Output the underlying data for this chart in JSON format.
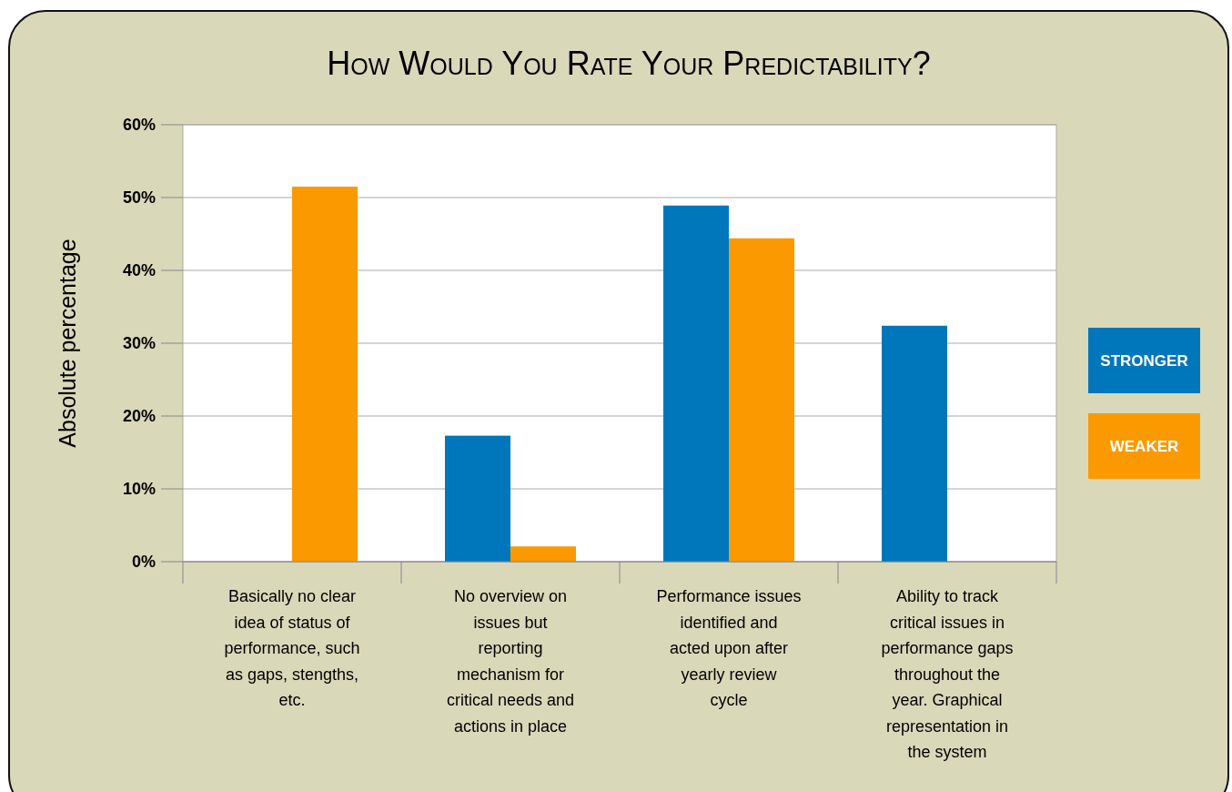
{
  "chart_data": {
    "type": "bar",
    "title": "How Would You Rate Your Predictability?",
    "ylabel": "Absolute percentage",
    "categories": [
      "Basically no clear idea of status of performance, such as gaps, stengths, etc.",
      "No overview on issues but reporting mechanism for critical needs and actions in place",
      "Performance issues identified and acted upon after yearly review cycle",
      "Ability to track critical issues in performance gaps throughout the year. Graphical representation in the system"
    ],
    "series": [
      {
        "name": "STRONGER",
        "color": "#0077bb",
        "values": [
          0,
          17.3,
          48.9,
          32.4
        ]
      },
      {
        "name": "WEAKER",
        "color": "#fa9a00",
        "values": [
          51.5,
          2.1,
          44.4,
          0
        ]
      }
    ],
    "ylim": [
      0,
      60
    ],
    "yticks": [
      {
        "value": 0,
        "label": "0%"
      },
      {
        "value": 10,
        "label": "10%"
      },
      {
        "value": 20,
        "label": "20%"
      },
      {
        "value": 30,
        "label": "30%"
      },
      {
        "value": 40,
        "label": "40%"
      },
      {
        "value": 50,
        "label": "50%"
      },
      {
        "value": 60,
        "label": "60%"
      }
    ],
    "grid": "y",
    "legend": "right"
  }
}
